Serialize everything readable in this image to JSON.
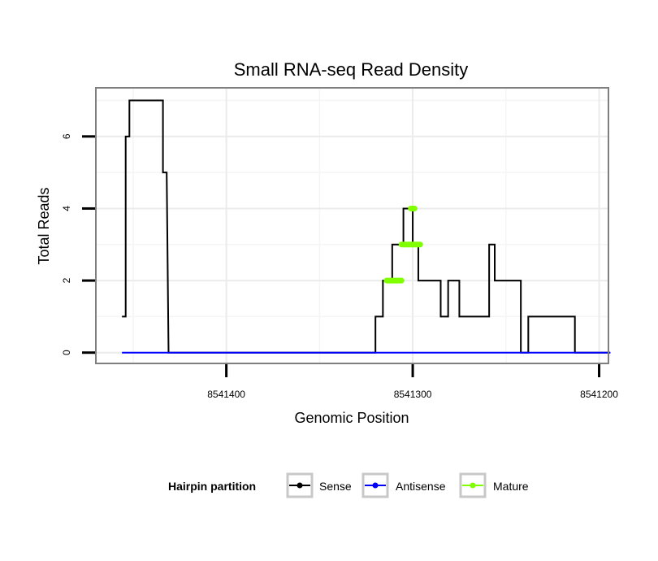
{
  "chart_data": {
    "type": "line",
    "title": "Small RNA-seq Read Density",
    "xlabel": "Genomic Position",
    "ylabel": "Total Reads",
    "xlim": [
      8541470,
      8541195
    ],
    "ylim": [
      -0.3,
      7.35
    ],
    "x_reversed": true,
    "x_ticks": [
      8541400,
      8541300,
      8541200
    ],
    "x_tick_labels": [
      "8541400",
      "8541300",
      "8541200"
    ],
    "y_ticks": [
      0,
      2,
      4,
      6
    ],
    "y_tick_labels": [
      "0",
      "2",
      "4",
      "6"
    ],
    "grid": true,
    "legend": {
      "title": "Hairpin partition",
      "position": "bottom",
      "entries": [
        {
          "label": "Sense",
          "color": "#000000"
        },
        {
          "label": "Antisense",
          "color": "#0000ff"
        },
        {
          "label": "Mature",
          "color": "#7fff00"
        }
      ]
    },
    "series": [
      {
        "name": "Sense",
        "color": "#000000",
        "x": [
          8541456,
          8541454,
          8541454,
          8541452,
          8541452,
          8541449,
          8541449,
          8541434,
          8541434,
          8541432,
          8541432,
          8541431,
          8541431,
          8541320,
          8541320,
          8541316,
          8541316,
          8541311,
          8541311,
          8541305,
          8541305,
          8541300,
          8541300,
          8541297,
          8541297,
          8541290,
          8541290,
          8541285,
          8541285,
          8541281,
          8541281,
          8541275,
          8541275,
          8541269,
          8541269,
          8541259,
          8541259,
          8541256,
          8541256,
          8541242,
          8541242,
          8541238,
          8541238,
          8541222,
          8541222,
          8541213,
          8541213,
          8541194
        ],
        "y": [
          1,
          1,
          6,
          6,
          7,
          7,
          7,
          7,
          5,
          5,
          5,
          0,
          0,
          0,
          1,
          1,
          2,
          2,
          3,
          3,
          4,
          4,
          3,
          3,
          2,
          2,
          2,
          2,
          1,
          1,
          2,
          2,
          1,
          1,
          1,
          1,
          3,
          3,
          2,
          2,
          0,
          0,
          1,
          1,
          1,
          1,
          0,
          0
        ]
      },
      {
        "name": "Antisense",
        "color": "#0000ff",
        "x": [
          8541456,
          8541194
        ],
        "y": [
          0,
          0
        ]
      },
      {
        "name": "Mature",
        "color": "#7fff00",
        "segments": [
          {
            "x": [
              8541314,
              8541306
            ],
            "y": [
              2,
              2
            ]
          },
          {
            "x": [
              8541306,
              8541296
            ],
            "y": [
              3,
              3
            ]
          },
          {
            "x": [
              8541301,
              8541299
            ],
            "y": [
              4,
              4
            ]
          }
        ]
      }
    ]
  }
}
